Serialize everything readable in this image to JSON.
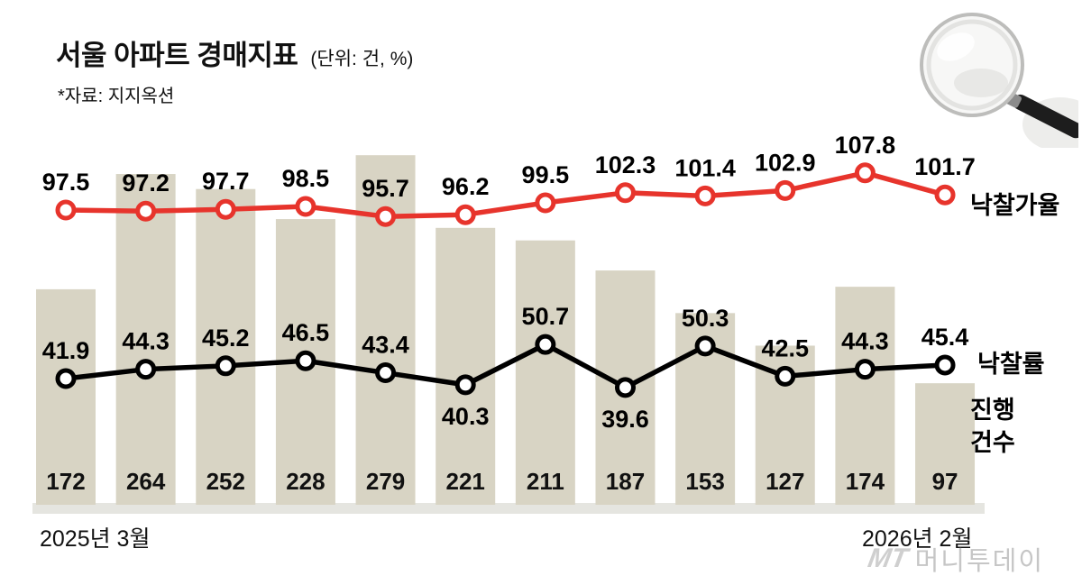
{
  "header": {
    "title": "서울 아파트 경매지표",
    "unit": "(단위: 건, %)",
    "source": "*자료: 지지옥션"
  },
  "chart_data": {
    "type": "composite",
    "x_first_label": "2025년 3월",
    "x_last_label": "2026년 2월",
    "x_labels_visible": [
      "2025년 3월",
      "2026년 2월"
    ],
    "points_count": 12,
    "grid": false,
    "legend_position": "right-of-series-ends",
    "series": [
      {
        "name": "낙찰가율",
        "type": "line",
        "color": "#e7342c",
        "values": [
          97.5,
          97.2,
          97.7,
          98.5,
          95.7,
          96.2,
          99.5,
          102.3,
          101.4,
          102.9,
          107.8,
          101.7
        ]
      },
      {
        "name": "낙찰률",
        "type": "line",
        "color": "#000000",
        "values": [
          41.9,
          44.3,
          45.2,
          46.5,
          43.4,
          40.3,
          50.7,
          39.6,
          50.3,
          42.5,
          44.3,
          45.4
        ]
      },
      {
        "name": "진행 건수",
        "type": "bar",
        "color": "#d8d4c4",
        "values": [
          172,
          264,
          252,
          228,
          279,
          221,
          211,
          187,
          153,
          127,
          174,
          97
        ]
      }
    ]
  },
  "footer": {
    "logo_mark": "MT",
    "logo_text": "머니투데이"
  },
  "colors": {
    "line_red": "#e7342c",
    "line_black": "#000000",
    "bar_fill": "#d8d4c4",
    "baseline_strip": "#e5e5e0",
    "label_text": "#111111",
    "logo_gray": "#c8c8c8"
  }
}
